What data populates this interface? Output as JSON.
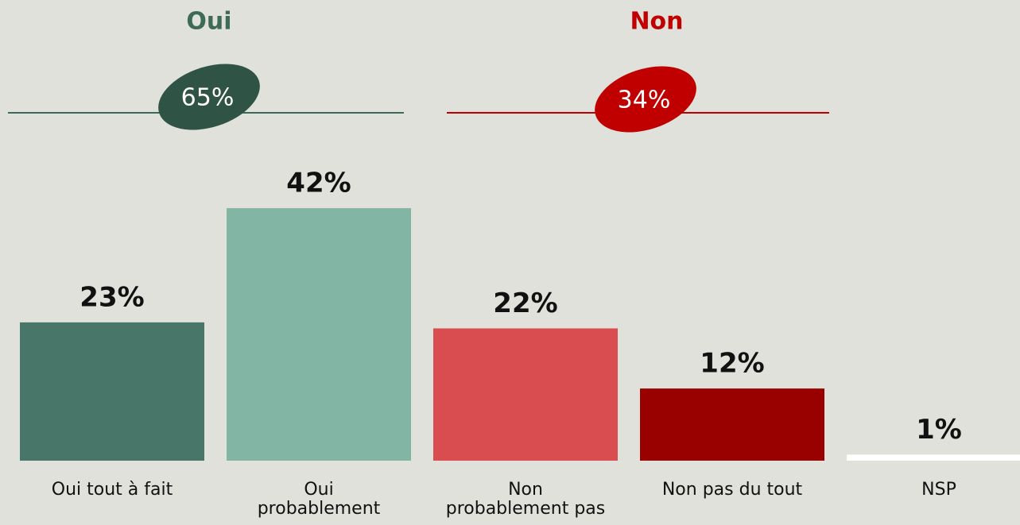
{
  "chart_data": {
    "type": "bar",
    "categories": [
      "Oui tout à fait",
      "Oui\nprobablement",
      "Non\nprobablement pas",
      "Non pas du tout",
      "NSP"
    ],
    "values": [
      23,
      42,
      22,
      12,
      1
    ],
    "value_labels": [
      "23%",
      "42%",
      "22%",
      "12%",
      "1%"
    ],
    "colors": [
      "#48776a",
      "#82b5a3",
      "#d94d50",
      "#990000",
      "#ffffff"
    ],
    "groups": [
      {
        "name": "Oui",
        "value": 65,
        "value_label": "65%",
        "color": "#2f5345",
        "title_color": "#3d6b56",
        "line_color": "#3a6b5a"
      },
      {
        "name": "Non",
        "value": 34,
        "value_label": "34%",
        "color": "#c00000",
        "title_color": "#c00000",
        "line_color": "#c00000"
      }
    ]
  }
}
